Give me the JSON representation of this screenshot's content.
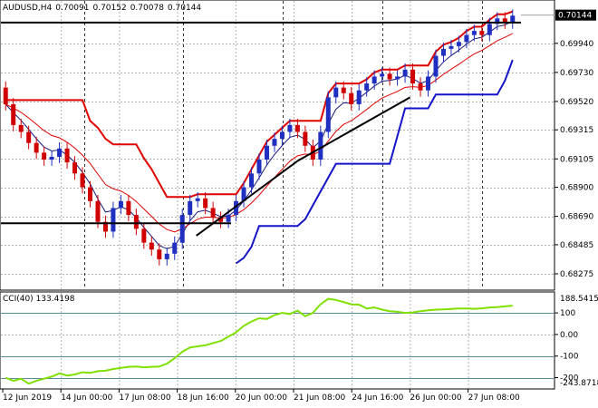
{
  "header": {
    "symbol": "AUDUSD,H4",
    "open": "0.70091",
    "high": "0.70152",
    "low": "0.70078",
    "close": "0.70144"
  },
  "indicator": {
    "name": "CCI(40)",
    "value": "133.4198"
  },
  "price_axis": {
    "ticks": [
      "0.69940",
      "0.69730",
      "0.69520",
      "0.69315",
      "0.69105",
      "0.68900",
      "0.68690",
      "0.68485",
      "0.68275"
    ],
    "current_price": "0.70144"
  },
  "cci_axis": {
    "ticks": [
      "188.5415",
      "100",
      "0.00",
      "-100",
      "-200",
      "-243.8718"
    ]
  },
  "time_axis": {
    "labels": [
      "12 Jun 2019",
      "14 Jun 00:00",
      "17 Jun 08:00",
      "18 Jun 16:00",
      "20 Jun 00:00",
      "21 Jun 08:00",
      "24 Jun 16:00",
      "26 Jun 00:00",
      "27 Jun 08:00"
    ]
  },
  "colors": {
    "bull": "#1f2fbf",
    "bear": "#d10000",
    "envelope_upper": "#e00000",
    "envelope_lower": "#1414c8",
    "ma_fast": "#1a1a80",
    "ma_slow": "#e00000",
    "cci": "#80e000",
    "grid": "#b0b0b0"
  },
  "chart_data": [
    {
      "type": "candlestick",
      "title": "AUDUSD,H4",
      "ylim": [
        0.6817,
        0.7024
      ],
      "closes": [
        0.695,
        0.6935,
        0.693,
        0.6922,
        0.6915,
        0.691,
        0.6912,
        0.6918,
        0.6908,
        0.69,
        0.689,
        0.688,
        0.6865,
        0.6858,
        0.6875,
        0.688,
        0.687,
        0.686,
        0.685,
        0.6845,
        0.6838,
        0.6842,
        0.685,
        0.687,
        0.688,
        0.6882,
        0.6875,
        0.6868,
        0.6865,
        0.687,
        0.688,
        0.689,
        0.69,
        0.691,
        0.692,
        0.6925,
        0.693,
        0.6935,
        0.693,
        0.692,
        0.691,
        0.693,
        0.6955,
        0.6962,
        0.6958,
        0.695,
        0.696,
        0.6965,
        0.697,
        0.6972,
        0.6968,
        0.697,
        0.6975,
        0.6965,
        0.696,
        0.697,
        0.6985,
        0.699,
        0.6992,
        0.6995,
        0.7,
        0.7003,
        0.7,
        0.7008,
        0.7012,
        0.7009,
        0.7014
      ]
    },
    {
      "type": "line",
      "title": "CCI(40)",
      "ylim": [
        -243.8718,
        188.5415
      ],
      "values": [
        -200,
        -215,
        -205,
        -228,
        -215,
        -205,
        -195,
        -180,
        -190,
        -185,
        -175,
        -178,
        -170,
        -168,
        -160,
        -155,
        -150,
        -148,
        -152,
        -150,
        -148,
        -135,
        -110,
        -80,
        -60,
        -55,
        -50,
        -40,
        -30,
        -10,
        10,
        40,
        60,
        75,
        72,
        90,
        100,
        95,
        110,
        85,
        100,
        140,
        165,
        160,
        150,
        140,
        138,
        120,
        125,
        115,
        108,
        105,
        100,
        102,
        108,
        112,
        115,
        116,
        118,
        120,
        120,
        119,
        121,
        125,
        127,
        130,
        133.4198
      ]
    }
  ]
}
